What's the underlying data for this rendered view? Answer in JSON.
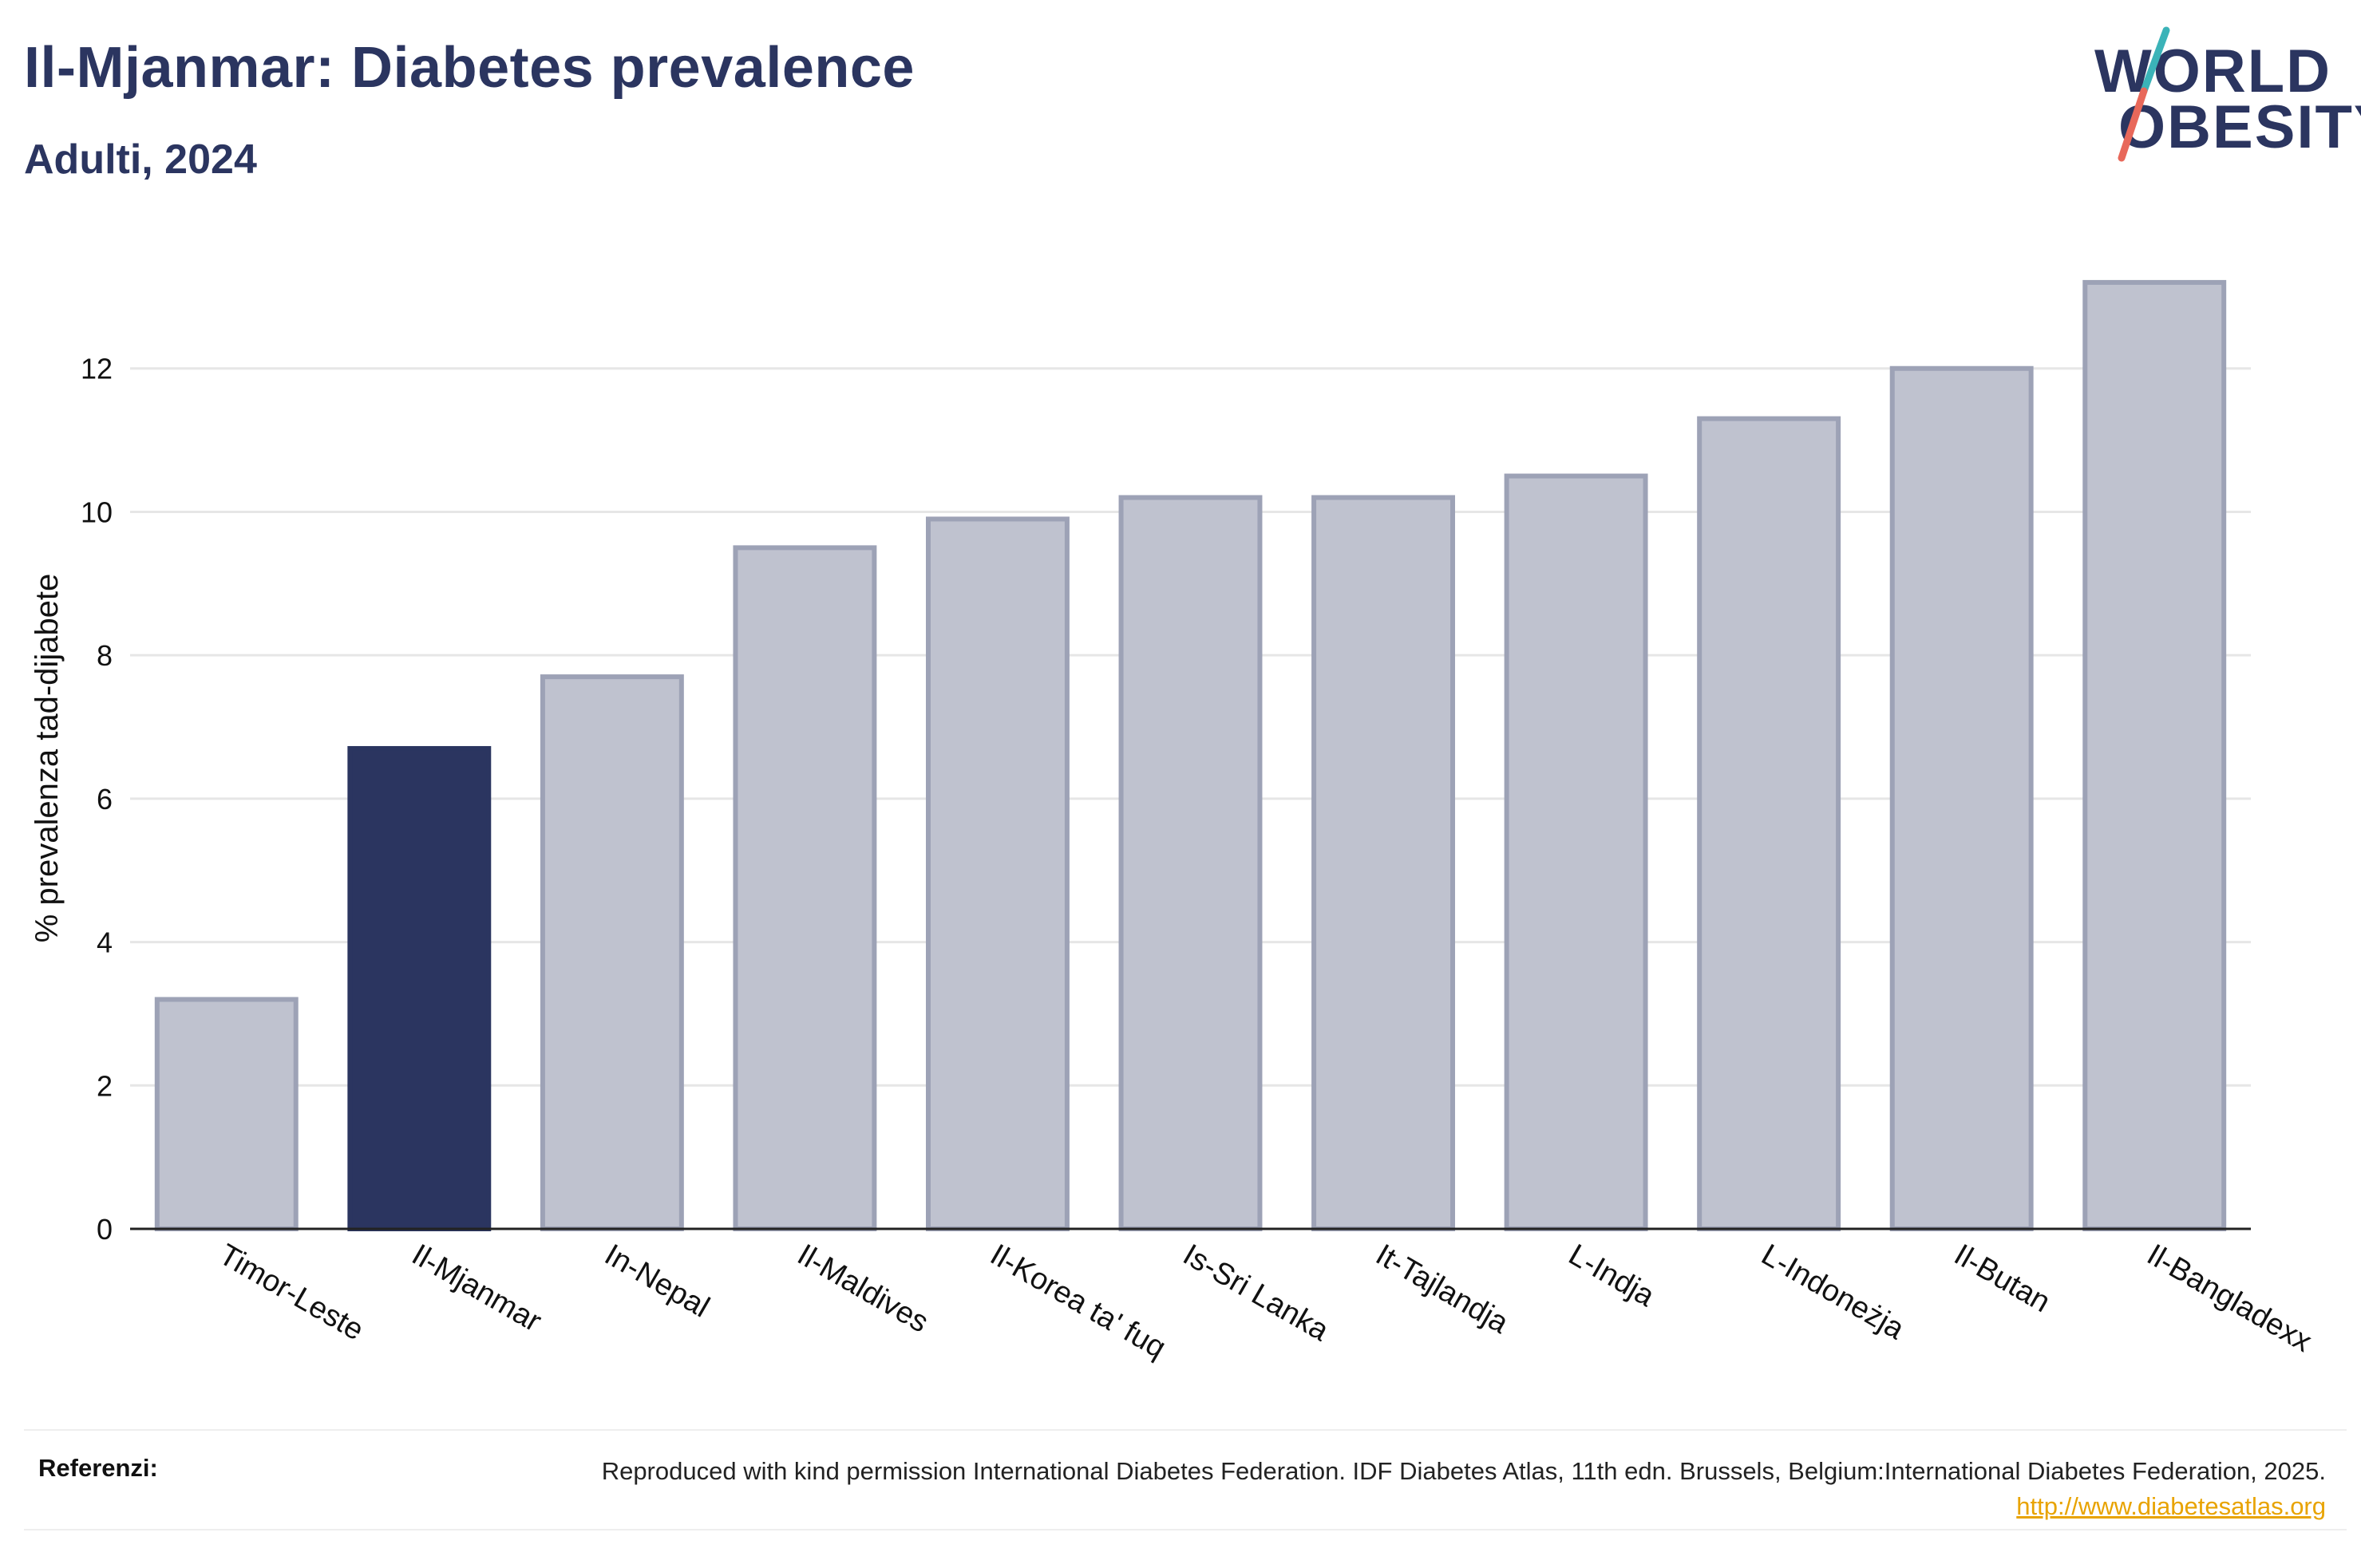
{
  "header": {
    "title": "Il-Mjanmar: Diabetes prevalence",
    "subtitle": "Adulti, 2024"
  },
  "logo": {
    "line1": "WORLD",
    "line2": "OBESITY",
    "colors": {
      "text": "#2b3560",
      "slash_top": "#3bb3b8",
      "slash_bottom": "#e8685a"
    }
  },
  "colors": {
    "highlight_bar": "#2b3560",
    "other_bar_fill": "#bfc2cf",
    "other_bar_stroke": "#9da2b6",
    "gridline": "#e6e6e6",
    "axis": "#222222"
  },
  "chart_data": {
    "type": "bar",
    "categories": [
      "Timor-Leste",
      "Il-Mjanmar",
      "In-Nepal",
      "Il-Maldives",
      "Il-Korea ta' fuq",
      "Is-Sri Lanka",
      "It-Tajlandja",
      "L-Indja",
      "L-Indoneżja",
      "Il-Butan",
      "Il-Bangladexx"
    ],
    "values": [
      3.2,
      6.7,
      7.7,
      9.5,
      9.9,
      10.2,
      10.2,
      10.5,
      11.3,
      12.0,
      13.2
    ],
    "highlight": "Il-Mjanmar",
    "title": "Il-Mjanmar: Diabetes prevalence",
    "subtitle": "Adulti, 2024",
    "xlabel": "",
    "ylabel": "% prevalenza tad-dijabete",
    "ylim": [
      0,
      13.8
    ],
    "yticks": [
      0,
      2,
      4,
      6,
      8,
      10,
      12
    ],
    "grid": true,
    "legend": "none"
  },
  "footer": {
    "label": "Referenzi:",
    "text": "Reproduced with kind permission International Diabetes Federation. IDF Diabetes Atlas, 11th edn. Brussels, Belgium:International Diabetes Federation, 2025.",
    "link": "http://www.diabetesatlas.org"
  }
}
